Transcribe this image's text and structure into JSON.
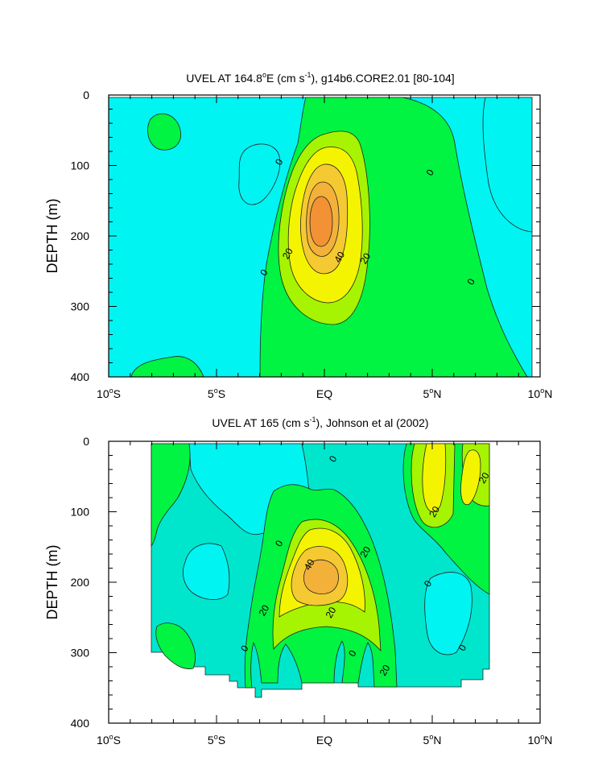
{
  "colors": {
    "cyan": "#00f4f2",
    "aqua": "#00e6cd",
    "green": "#01f441",
    "lime": "#a6f401",
    "yellow": "#f4f400",
    "gold": "#f5c931",
    "orange": "#f29234",
    "line": "#222222"
  },
  "chart_data": [
    {
      "type": "contour",
      "title": "UVEL AT 164.8°E (cm s⁻¹), g14b6.CORE2.01 [80-104]",
      "title_parts": {
        "a": "UVEL AT 164.8",
        "deg": "o",
        "b": "E (cm s",
        "sup": "-1",
        "c": "), g14b6.CORE2.01 [80-104]"
      },
      "ylabel": "DEPTH (m)",
      "xlim": [
        -10,
        10
      ],
      "ylim": [
        400,
        0
      ],
      "xticks": [
        {
          "value": -10,
          "label": "10",
          "deg": "o",
          "suffix": "S"
        },
        {
          "value": -5,
          "label": "5",
          "deg": "o",
          "suffix": "S"
        },
        {
          "value": 0,
          "label": "EQ",
          "deg": "",
          "suffix": ""
        },
        {
          "value": 5,
          "label": "5",
          "deg": "o",
          "suffix": "N"
        },
        {
          "value": 10,
          "label": "10",
          "deg": "o",
          "suffix": "N"
        }
      ],
      "yticks": [
        0,
        100,
        200,
        300,
        400
      ],
      "contour_levels": [
        -10,
        0,
        10,
        20,
        30,
        40,
        50
      ],
      "contour_labels": [
        {
          "text": "0",
          "x": -2.1,
          "y": 95
        },
        {
          "text": "0",
          "x": -2.8,
          "y": 252
        },
        {
          "text": "0",
          "x": 4.9,
          "y": 110
        },
        {
          "text": "0",
          "x": 6.8,
          "y": 265
        },
        {
          "text": "20",
          "x": -1.7,
          "y": 225
        },
        {
          "text": "40",
          "x": 0.7,
          "y": 230
        },
        {
          "text": "20",
          "x": 1.9,
          "y": 232
        }
      ],
      "max_value_region": {
        "x": 0,
        "y": 180,
        "value": ">50"
      }
    },
    {
      "type": "contour",
      "title": "UVEL AT 165 (cm s⁻¹), Johnson et al (2002)",
      "title_parts": {
        "a": "UVEL AT 165 (cm s",
        "sup": "-1",
        "c": "), Johnson et al (2002)"
      },
      "ylabel": "DEPTH (m)",
      "xlim": [
        -10,
        10
      ],
      "ylim": [
        400,
        0
      ],
      "xticks": [
        {
          "value": -10,
          "label": "10",
          "deg": "o",
          "suffix": "S"
        },
        {
          "value": -5,
          "label": "5",
          "deg": "o",
          "suffix": "S"
        },
        {
          "value": 0,
          "label": "EQ",
          "deg": "",
          "suffix": ""
        },
        {
          "value": 5,
          "label": "5",
          "deg": "o",
          "suffix": "N"
        },
        {
          "value": 10,
          "label": "10",
          "deg": "o",
          "suffix": "N"
        }
      ],
      "yticks": [
        0,
        100,
        200,
        300,
        400
      ],
      "contour_levels": [
        -10,
        0,
        10,
        20,
        30,
        40
      ],
      "contour_labels": [
        {
          "text": "0",
          "x": 0.4,
          "y": 25
        },
        {
          "text": "20",
          "x": 7.4,
          "y": 52
        },
        {
          "text": "20",
          "x": 5.1,
          "y": 100
        },
        {
          "text": "0",
          "x": -2.1,
          "y": 145
        },
        {
          "text": "20",
          "x": 1.9,
          "y": 157
        },
        {
          "text": "40",
          "x": -0.7,
          "y": 175
        },
        {
          "text": "0",
          "x": 4.8,
          "y": 202
        },
        {
          "text": "20",
          "x": -2.8,
          "y": 240
        },
        {
          "text": "20",
          "x": 0.3,
          "y": 243
        },
        {
          "text": "0",
          "x": -3.7,
          "y": 294
        },
        {
          "text": "0",
          "x": 6.4,
          "y": 293
        },
        {
          "text": "0",
          "x": 1.3,
          "y": 301
        },
        {
          "text": "20",
          "x": 2.8,
          "y": 325
        }
      ],
      "data_coverage": {
        "x_range": [
          -8,
          8
        ],
        "max_depth": 360
      }
    }
  ]
}
